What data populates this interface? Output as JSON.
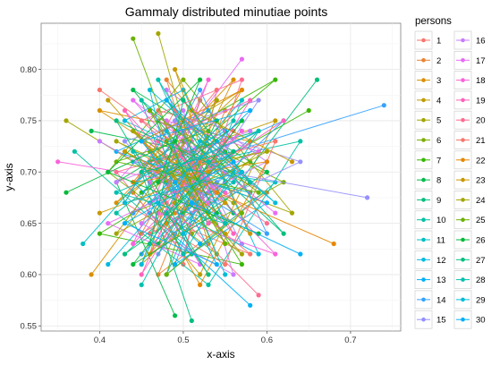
{
  "chart_data": {
    "type": "line",
    "title": "Gammaly distributed minutiae points",
    "xlabel": "x-axis",
    "ylabel": "y-axis",
    "xlim": [
      0.33,
      0.76
    ],
    "ylim": [
      0.545,
      0.845
    ],
    "x_ticks": [
      "0.4",
      "0.5",
      "0.6",
      "0.7"
    ],
    "y_ticks": [
      "0.55",
      "0.60",
      "0.65",
      "0.70",
      "0.75",
      "0.80"
    ],
    "grid": true,
    "legend": {
      "title": "persons",
      "placement": "right",
      "columns": 2
    },
    "series_colors": [
      "#F8766D",
      "#EA8331",
      "#D89000",
      "#C09B00",
      "#A3A500",
      "#7CAE00",
      "#39B600",
      "#00BB4E",
      "#00BF7D",
      "#00C1A3",
      "#00BFC4",
      "#00BAE0",
      "#00B0F6",
      "#35A2FF",
      "#9590FF",
      "#C77CFF",
      "#E76BF3",
      "#FA62DB",
      "#FF62BC",
      "#FF6C91",
      "#F8766D",
      "#E58700",
      "#C99800",
      "#A3A500",
      "#6BB100",
      "#00BA38",
      "#00BF7D",
      "#00C0AF",
      "#00BCD8",
      "#00B0F6"
    ],
    "series": [
      {
        "name": "1",
        "points": [
          [
            0.43,
            0.72
          ],
          [
            0.52,
            0.68
          ],
          [
            0.47,
            0.76
          ],
          [
            0.56,
            0.74
          ],
          [
            0.49,
            0.65
          ],
          [
            0.58,
            0.62
          ],
          [
            0.46,
            0.7
          ],
          [
            0.54,
            0.78
          ],
          [
            0.5,
            0.61
          ]
        ]
      },
      {
        "name": "2",
        "points": [
          [
            0.51,
            0.73
          ],
          [
            0.45,
            0.64
          ],
          [
            0.57,
            0.7
          ],
          [
            0.48,
            0.79
          ],
          [
            0.53,
            0.66
          ],
          [
            0.44,
            0.74
          ],
          [
            0.6,
            0.68
          ],
          [
            0.47,
            0.6
          ],
          [
            0.55,
            0.76
          ]
        ]
      },
      {
        "name": "3",
        "points": [
          [
            0.39,
            0.6
          ],
          [
            0.5,
            0.72
          ],
          [
            0.42,
            0.67
          ],
          [
            0.56,
            0.79
          ],
          [
            0.46,
            0.62
          ],
          [
            0.53,
            0.69
          ],
          [
            0.4,
            0.76
          ],
          [
            0.58,
            0.73
          ],
          [
            0.49,
            0.66
          ]
        ]
      },
      {
        "name": "4",
        "points": [
          [
            0.41,
            0.77
          ],
          [
            0.55,
            0.64
          ],
          [
            0.47,
            0.71
          ],
          [
            0.61,
            0.75
          ],
          [
            0.52,
            0.6
          ],
          [
            0.44,
            0.68
          ],
          [
            0.57,
            0.78
          ],
          [
            0.49,
            0.74
          ],
          [
            0.53,
            0.63
          ]
        ]
      },
      {
        "name": "5",
        "points": [
          [
            0.36,
            0.75
          ],
          [
            0.48,
            0.69
          ],
          [
            0.59,
            0.72
          ],
          [
            0.45,
            0.61
          ],
          [
            0.52,
            0.77
          ],
          [
            0.63,
            0.66
          ],
          [
            0.5,
            0.7
          ],
          [
            0.42,
            0.73
          ],
          [
            0.56,
            0.67
          ]
        ]
      },
      {
        "name": "6",
        "points": [
          [
            0.44,
            0.66
          ],
          [
            0.58,
            0.71
          ],
          [
            0.5,
            0.79
          ],
          [
            0.41,
            0.7
          ],
          [
            0.54,
            0.62
          ],
          [
            0.47,
            0.75
          ],
          [
            0.62,
            0.69
          ],
          [
            0.51,
            0.64
          ],
          [
            0.46,
            0.72
          ]
        ]
      },
      {
        "name": "7",
        "points": [
          [
            0.65,
            0.76
          ],
          [
            0.52,
            0.7
          ],
          [
            0.4,
            0.64
          ],
          [
            0.57,
            0.61
          ],
          [
            0.48,
            0.73
          ],
          [
            0.61,
            0.79
          ],
          [
            0.45,
            0.68
          ],
          [
            0.55,
            0.72
          ],
          [
            0.5,
            0.66
          ]
        ]
      },
      {
        "name": "8",
        "points": [
          [
            0.49,
            0.56
          ],
          [
            0.42,
            0.69
          ],
          [
            0.54,
            0.75
          ],
          [
            0.47,
            0.63
          ],
          [
            0.6,
            0.7
          ],
          [
            0.44,
            0.78
          ],
          [
            0.56,
            0.66
          ],
          [
            0.51,
            0.72
          ],
          [
            0.39,
            0.74
          ]
        ]
      },
      {
        "name": "9",
        "points": [
          [
            0.66,
            0.79
          ],
          [
            0.53,
            0.65
          ],
          [
            0.46,
            0.71
          ],
          [
            0.59,
            0.74
          ],
          [
            0.43,
            0.62
          ],
          [
            0.55,
            0.69
          ],
          [
            0.48,
            0.77
          ],
          [
            0.62,
            0.64
          ],
          [
            0.5,
            0.73
          ]
        ]
      },
      {
        "name": "10",
        "points": [
          [
            0.37,
            0.72
          ],
          [
            0.51,
            0.62
          ],
          [
            0.45,
            0.77
          ],
          [
            0.58,
            0.68
          ],
          [
            0.47,
            0.7
          ],
          [
            0.64,
            0.73
          ],
          [
            0.53,
            0.59
          ],
          [
            0.42,
            0.66
          ],
          [
            0.56,
            0.75
          ]
        ]
      },
      {
        "name": "11",
        "points": [
          [
            0.38,
            0.63
          ],
          [
            0.5,
            0.74
          ],
          [
            0.55,
            0.65
          ],
          [
            0.44,
            0.71
          ],
          [
            0.61,
            0.69
          ],
          [
            0.48,
            0.6
          ],
          [
            0.57,
            0.77
          ],
          [
            0.46,
            0.67
          ],
          [
            0.52,
            0.71
          ]
        ]
      },
      {
        "name": "12",
        "points": [
          [
            0.41,
            0.61
          ],
          [
            0.54,
            0.73
          ],
          [
            0.47,
            0.67
          ],
          [
            0.59,
            0.62
          ],
          [
            0.5,
            0.78
          ],
          [
            0.43,
            0.75
          ],
          [
            0.56,
            0.7
          ],
          [
            0.49,
            0.64
          ],
          [
            0.53,
            0.68
          ]
        ]
      },
      {
        "name": "13",
        "points": [
          [
            0.58,
            0.57
          ],
          [
            0.46,
            0.66
          ],
          [
            0.53,
            0.76
          ],
          [
            0.42,
            0.72
          ],
          [
            0.6,
            0.67
          ],
          [
            0.49,
            0.61
          ],
          [
            0.55,
            0.74
          ],
          [
            0.44,
            0.69
          ],
          [
            0.52,
            0.63
          ]
        ]
      },
      {
        "name": "14",
        "points": [
          [
            0.74,
            0.765
          ],
          [
            0.56,
            0.72
          ],
          [
            0.44,
            0.66
          ],
          [
            0.52,
            0.78
          ],
          [
            0.6,
            0.64
          ],
          [
            0.48,
            0.7
          ],
          [
            0.62,
            0.75
          ],
          [
            0.45,
            0.62
          ],
          [
            0.54,
            0.69
          ]
        ]
      },
      {
        "name": "15",
        "points": [
          [
            0.72,
            0.675
          ],
          [
            0.55,
            0.7
          ],
          [
            0.47,
            0.62
          ],
          [
            0.59,
            0.77
          ],
          [
            0.43,
            0.73
          ],
          [
            0.51,
            0.66
          ],
          [
            0.64,
            0.71
          ],
          [
            0.49,
            0.75
          ],
          [
            0.57,
            0.63
          ]
        ]
      },
      {
        "name": "16",
        "points": [
          [
            0.4,
            0.73
          ],
          [
            0.53,
            0.67
          ],
          [
            0.48,
            0.78
          ],
          [
            0.6,
            0.71
          ],
          [
            0.45,
            0.65
          ],
          [
            0.56,
            0.6
          ],
          [
            0.5,
            0.76
          ],
          [
            0.42,
            0.69
          ],
          [
            0.58,
            0.74
          ]
        ]
      },
      {
        "name": "17",
        "points": [
          [
            0.57,
            0.81
          ],
          [
            0.46,
            0.69
          ],
          [
            0.52,
            0.61
          ],
          [
            0.41,
            0.65
          ],
          [
            0.59,
            0.72
          ],
          [
            0.48,
            0.75
          ],
          [
            0.54,
            0.68
          ],
          [
            0.44,
            0.77
          ],
          [
            0.61,
            0.66
          ]
        ]
      },
      {
        "name": "18",
        "points": [
          [
            0.35,
            0.71
          ],
          [
            0.5,
            0.69
          ],
          [
            0.57,
            0.74
          ],
          [
            0.44,
            0.63
          ],
          [
            0.53,
            0.79
          ],
          [
            0.47,
            0.66
          ],
          [
            0.61,
            0.62
          ],
          [
            0.49,
            0.72
          ],
          [
            0.55,
            0.68
          ]
        ]
      },
      {
        "name": "19",
        "points": [
          [
            0.62,
            0.75
          ],
          [
            0.49,
            0.68
          ],
          [
            0.43,
            0.76
          ],
          [
            0.56,
            0.64
          ],
          [
            0.51,
            0.71
          ],
          [
            0.45,
            0.6
          ],
          [
            0.58,
            0.77
          ],
          [
            0.47,
            0.73
          ],
          [
            0.53,
            0.65
          ]
        ]
      },
      {
        "name": "20",
        "points": [
          [
            0.59,
            0.58
          ],
          [
            0.48,
            0.67
          ],
          [
            0.55,
            0.73
          ],
          [
            0.42,
            0.7
          ],
          [
            0.5,
            0.62
          ],
          [
            0.57,
            0.79
          ],
          [
            0.45,
            0.75
          ],
          [
            0.53,
            0.69
          ],
          [
            0.6,
            0.65
          ]
        ]
      },
      {
        "name": "21",
        "points": [
          [
            0.4,
            0.78
          ],
          [
            0.52,
            0.71
          ],
          [
            0.46,
            0.64
          ],
          [
            0.58,
            0.69
          ],
          [
            0.49,
            0.76
          ],
          [
            0.43,
            0.67
          ],
          [
            0.55,
            0.61
          ],
          [
            0.61,
            0.73
          ],
          [
            0.47,
            0.7
          ]
        ]
      },
      {
        "name": "22",
        "points": [
          [
            0.68,
            0.63
          ],
          [
            0.54,
            0.68
          ],
          [
            0.45,
            0.73
          ],
          [
            0.57,
            0.78
          ],
          [
            0.48,
            0.65
          ],
          [
            0.52,
            0.59
          ],
          [
            0.6,
            0.71
          ],
          [
            0.44,
            0.69
          ],
          [
            0.5,
            0.75
          ]
        ]
      },
      {
        "name": "23",
        "points": [
          [
            0.63,
            0.71
          ],
          [
            0.51,
            0.76
          ],
          [
            0.46,
            0.62
          ],
          [
            0.55,
            0.67
          ],
          [
            0.43,
            0.72
          ],
          [
            0.58,
            0.64
          ],
          [
            0.49,
            0.8
          ],
          [
            0.53,
            0.7
          ],
          [
            0.4,
            0.66
          ]
        ]
      },
      {
        "name": "24",
        "points": [
          [
            0.47,
            0.835
          ],
          [
            0.52,
            0.69
          ],
          [
            0.44,
            0.74
          ],
          [
            0.57,
            0.62
          ],
          [
            0.49,
            0.67
          ],
          [
            0.54,
            0.77
          ],
          [
            0.42,
            0.64
          ],
          [
            0.6,
            0.72
          ],
          [
            0.48,
            0.7
          ]
        ]
      },
      {
        "name": "25",
        "points": [
          [
            0.44,
            0.83
          ],
          [
            0.5,
            0.7
          ],
          [
            0.55,
            0.63
          ],
          [
            0.46,
            0.76
          ],
          [
            0.59,
            0.68
          ],
          [
            0.42,
            0.71
          ],
          [
            0.53,
            0.74
          ],
          [
            0.48,
            0.6
          ],
          [
            0.57,
            0.66
          ]
        ]
      },
      {
        "name": "26",
        "points": [
          [
            0.36,
            0.68
          ],
          [
            0.49,
            0.73
          ],
          [
            0.54,
            0.66
          ],
          [
            0.44,
            0.61
          ],
          [
            0.57,
            0.75
          ],
          [
            0.47,
            0.69
          ],
          [
            0.52,
            0.79
          ],
          [
            0.41,
            0.7
          ],
          [
            0.59,
            0.64
          ]
        ]
      },
      {
        "name": "27",
        "points": [
          [
            0.51,
            0.555
          ],
          [
            0.45,
            0.7
          ],
          [
            0.56,
            0.72
          ],
          [
            0.48,
            0.66
          ],
          [
            0.53,
            0.6
          ],
          [
            0.42,
            0.75
          ],
          [
            0.58,
            0.69
          ],
          [
            0.5,
            0.77
          ],
          [
            0.46,
            0.63
          ]
        ]
      },
      {
        "name": "28",
        "points": [
          [
            0.45,
            0.59
          ],
          [
            0.53,
            0.71
          ],
          [
            0.47,
            0.79
          ],
          [
            0.55,
            0.65
          ],
          [
            0.42,
            0.68
          ],
          [
            0.59,
            0.74
          ],
          [
            0.5,
            0.62
          ],
          [
            0.44,
            0.72
          ],
          [
            0.56,
            0.69
          ]
        ]
      },
      {
        "name": "29",
        "points": [
          [
            0.55,
            0.6
          ],
          [
            0.48,
            0.74
          ],
          [
            0.43,
            0.67
          ],
          [
            0.57,
            0.7
          ],
          [
            0.5,
            0.64
          ],
          [
            0.46,
            0.78
          ],
          [
            0.61,
            0.67
          ],
          [
            0.52,
            0.73
          ],
          [
            0.45,
            0.61
          ]
        ]
      },
      {
        "name": "30",
        "points": [
          [
            0.64,
            0.62
          ],
          [
            0.51,
            0.67
          ],
          [
            0.45,
            0.73
          ],
          [
            0.58,
            0.76
          ],
          [
            0.49,
            0.69
          ],
          [
            0.54,
            0.61
          ],
          [
            0.43,
            0.65
          ],
          [
            0.56,
            0.71
          ],
          [
            0.48,
            0.77
          ]
        ]
      }
    ]
  }
}
